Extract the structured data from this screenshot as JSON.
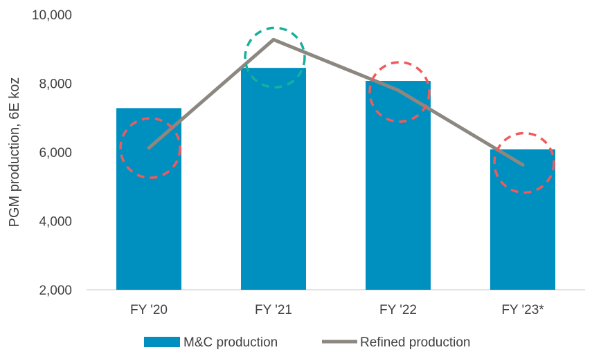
{
  "chart_data": {
    "type": "bar",
    "categories": [
      "FY '20",
      "FY '21",
      "FY '22",
      "FY '23*"
    ],
    "series": [
      {
        "name": "M&C production",
        "kind": "bar",
        "color": "#0090C0",
        "values": [
          7280,
          8450,
          8070,
          6080
        ]
      },
      {
        "name": "Refined production",
        "kind": "line",
        "color": "#8C8780",
        "values": [
          6120,
          9270,
          7800,
          5630
        ]
      }
    ],
    "xlabel": "",
    "ylabel": "PGM production, 6E koz",
    "ylim": [
      2000,
      10000
    ],
    "yticks": [
      "2,000",
      "4,000",
      "6,000",
      "8,000",
      "10,000"
    ],
    "ytick_values": [
      2000,
      4000,
      6000,
      8000,
      10000
    ],
    "grid": false,
    "legend_position": "bottom",
    "annotations": [
      {
        "category": "FY '20",
        "shape": "dashed circle",
        "color": "#F05A5A",
        "center_value": 6120
      },
      {
        "category": "FY '21",
        "shape": "dashed circle",
        "color": "#1AAE9F",
        "center_value": 8750
      },
      {
        "category": "FY '22",
        "shape": "dashed circle",
        "color": "#F05A5A",
        "center_value": 7750
      },
      {
        "category": "FY '23*",
        "shape": "dashed circle",
        "color": "#F05A5A",
        "center_value": 5690
      }
    ]
  }
}
